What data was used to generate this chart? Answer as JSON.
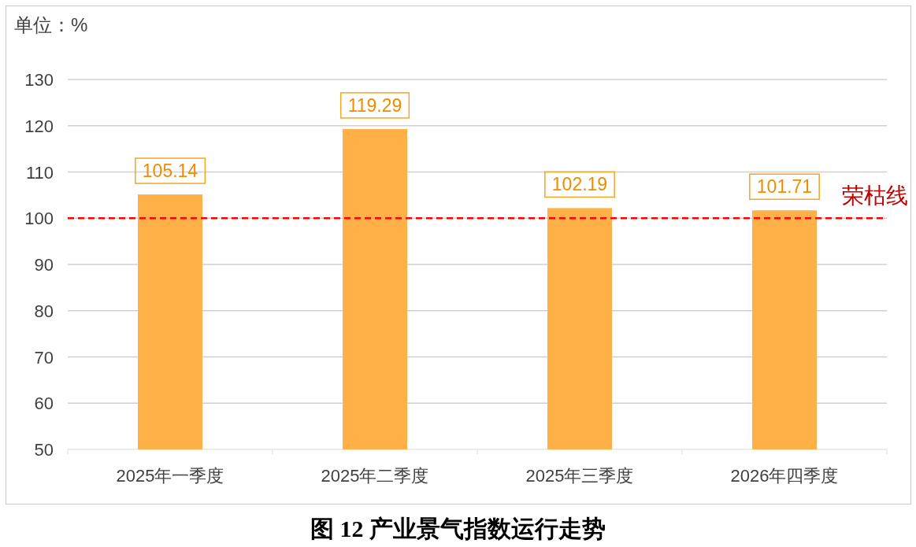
{
  "chart_data": {
    "type": "bar",
    "title": "图 12 产业景气指数运行走势",
    "ylabel": "单位：%",
    "categories": [
      "2025年一季度",
      "2025年二季度",
      "2025年三季度",
      "2026年四季度"
    ],
    "values": [
      105.14,
      119.29,
      102.19,
      101.71
    ],
    "color": "#ffb046",
    "ylim": [
      50,
      130
    ],
    "yticks": [
      50,
      60,
      70,
      80,
      90,
      100,
      110,
      120,
      130
    ],
    "grid": "y",
    "data_labels": true,
    "ref_lines": [
      {
        "axis": "y",
        "value": 100,
        "label": "荣枯线",
        "color": "#ff0000",
        "line_style": "dashed"
      }
    ]
  }
}
